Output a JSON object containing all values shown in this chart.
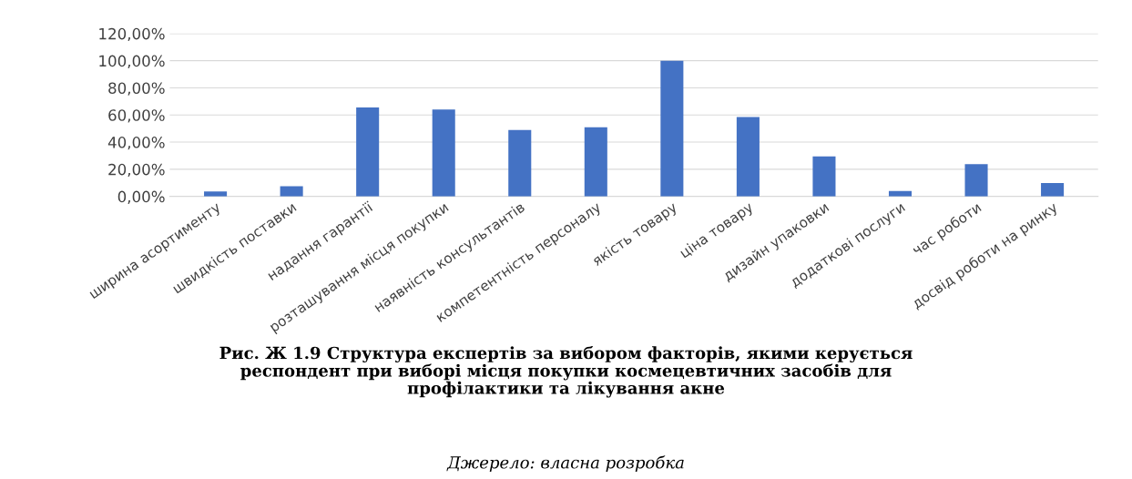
{
  "chart_data": {
    "type": "bar",
    "categories": [
      "ширина асортименту",
      "швидкість поставки",
      "надання гарантії",
      "розташування місця покупки",
      "наявність консультантів",
      "компетентність персоналу",
      "якість товару",
      "ціна товару",
      "дизайн упаковки",
      "додаткові послуги",
      "час роботи",
      "досвід роботи на ринку"
    ],
    "values": [
      3.6,
      7.5,
      65.6,
      64,
      49,
      51,
      100,
      58.4,
      29.5,
      3.9,
      23.7,
      9.9
    ],
    "color": "#4472c4",
    "ylim": [
      0,
      120
    ],
    "yticks": [
      {
        "value": 0,
        "label": "0,00%"
      },
      {
        "value": 20,
        "label": "20,00%"
      },
      {
        "value": 40,
        "label": "40,00%"
      },
      {
        "value": 60,
        "label": "60,00%"
      },
      {
        "value": 80,
        "label": "80,00%"
      },
      {
        "value": 100,
        "label": "100,00%"
      },
      {
        "value": 120,
        "label": "120,00%"
      }
    ],
    "grid": "y",
    "annotations": [
      "Рис. Ж 1.9 Структура експертів за вибором факторів, якими керується\nреспондент при виборі місця покупки космецевтичних засобів для\nпрофілактики та лікування акне",
      "Джерело: власна розробка"
    ]
  }
}
